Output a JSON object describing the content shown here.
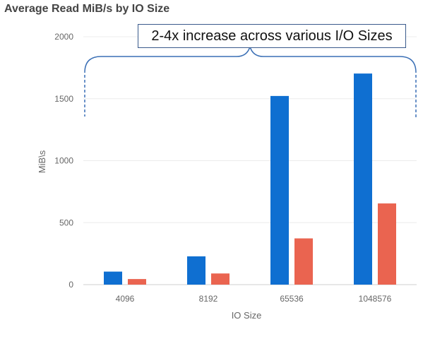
{
  "chart_data": {
    "type": "bar",
    "title": "Average Read MiB/s by IO Size",
    "xlabel": "IO Size",
    "ylabel": "MiB\\s",
    "categories": [
      "4096",
      "8192",
      "65536",
      "1048576"
    ],
    "series": [
      {
        "color": "#0f6fd1",
        "values": [
          105,
          228,
          1522,
          1703
        ]
      },
      {
        "color": "#ea6450",
        "values": [
          45,
          90,
          373,
          655
        ]
      }
    ],
    "ylim": [
      0,
      2000
    ],
    "yticks": [
      0,
      500,
      1000,
      1500,
      2000
    ],
    "grid": true,
    "annotation": "2-4x increase across various I/O Sizes",
    "annotation_border_color": "#3a5a8c",
    "bracket_color": "#3a6fb5"
  }
}
